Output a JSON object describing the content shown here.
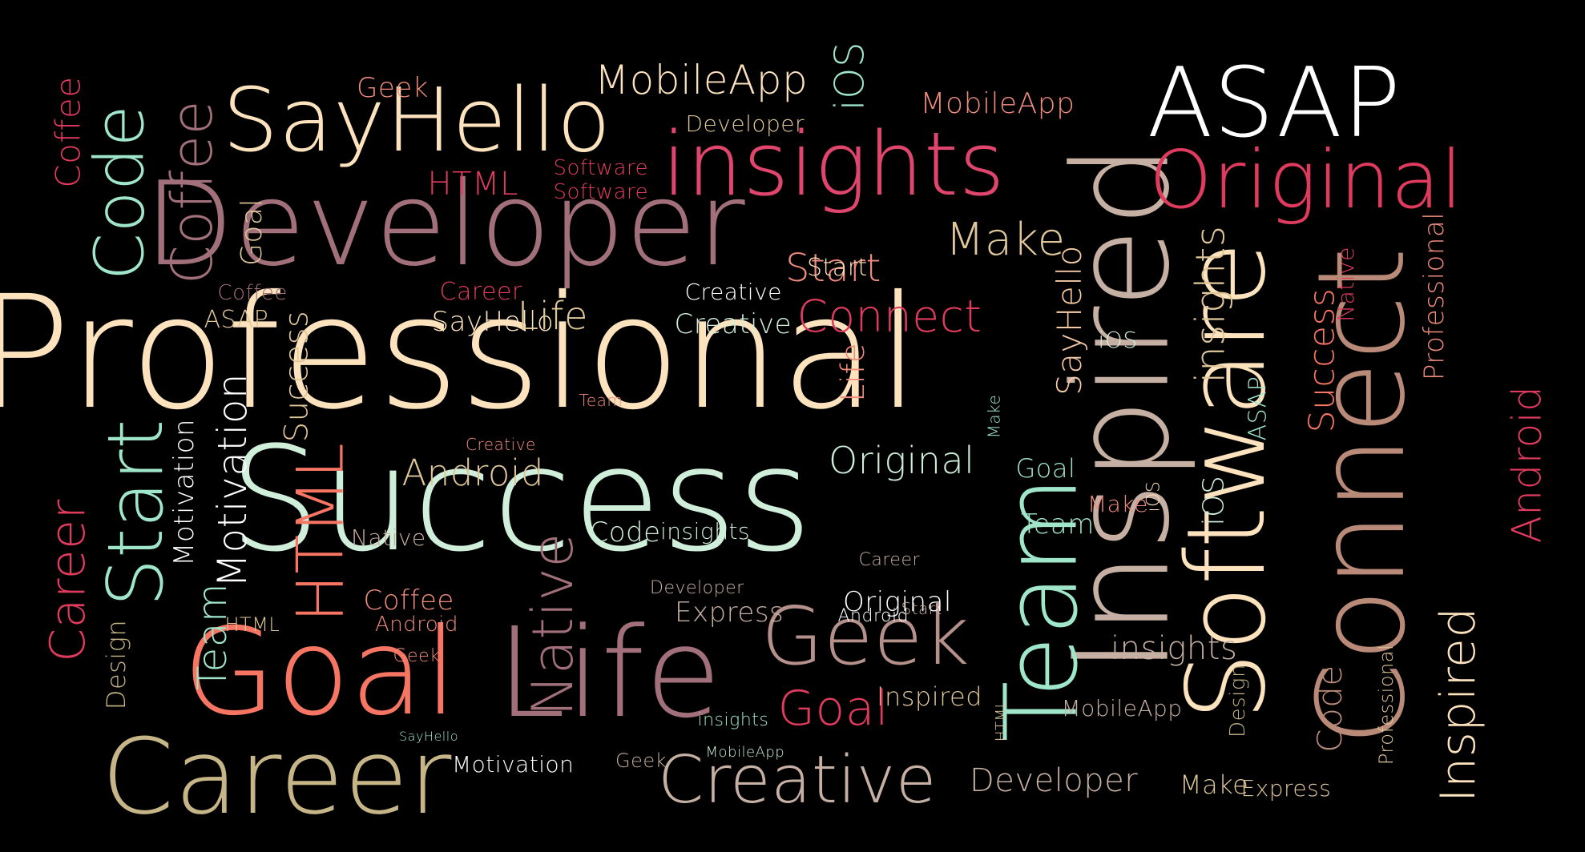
{
  "background": "#000000",
  "palette": {
    "cream": "#FCE3BD",
    "peach": "#F5C9A4",
    "mint": "#9FE6CB",
    "pale_mint": "#CFEFDB",
    "rose": "#E0466D",
    "crimson": "#E03B5E",
    "coral": "#F77563",
    "salmon": "#F08C7D",
    "mauve": "#A1707A",
    "dusty": "#B6918C",
    "taupe": "#C6AFA3",
    "khaki": "#C6B587",
    "white": "#FFFFFF",
    "sand": "#E0C79A",
    "brown": "#B98A78"
  },
  "words": [
    "Professional",
    "Success",
    "Developer",
    "insights",
    "SayHello",
    "Inspired",
    "ASAP",
    "Original",
    "Connect",
    "Software",
    "Team",
    "Goal",
    "Life",
    "Career",
    "Creative",
    "Geek",
    "Start",
    "Code",
    "Coffee",
    "HTML",
    "Android",
    "Make",
    "MobileApp",
    "iOS",
    "Native",
    "Motivation",
    "Express",
    "Design"
  ]
}
